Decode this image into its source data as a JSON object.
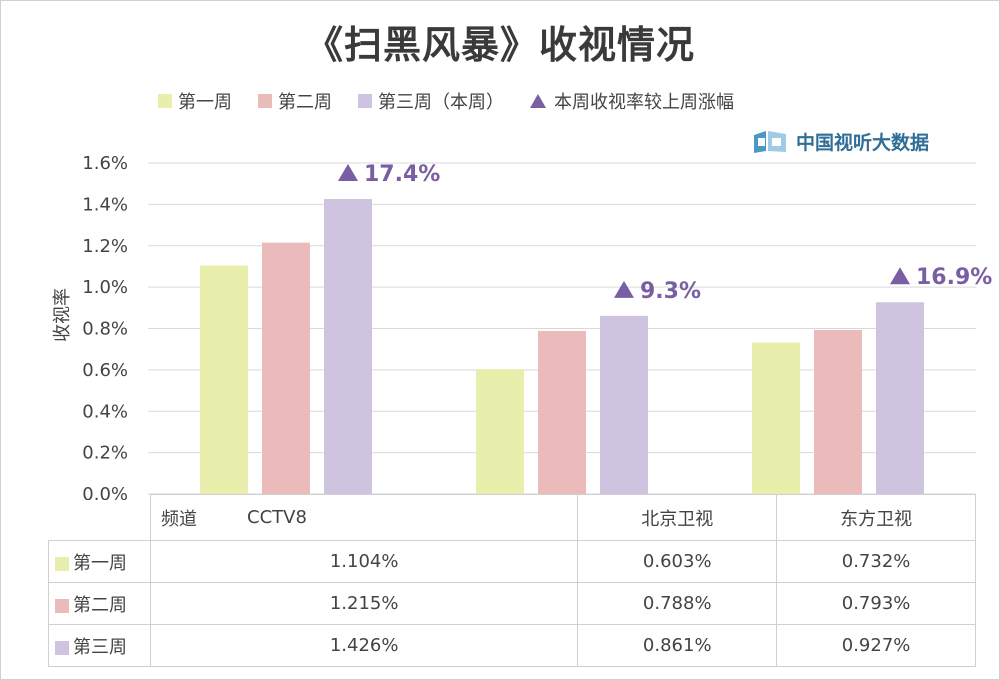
{
  "title": "《扫黑风暴》收视情况",
  "legend": {
    "w1": "第一周",
    "w2": "第二周",
    "w3": "第三周（本周）",
    "change": "本周收视率较上周涨幅"
  },
  "brand": "中国视听大数据",
  "table": {
    "corner": "频道",
    "channels": [
      "CCTV8",
      "北京卫视",
      "东方卫视"
    ],
    "rows": [
      {
        "label": "第一周",
        "values": [
          "1.104%",
          "0.603%",
          "0.732%"
        ]
      },
      {
        "label": "第二周",
        "values": [
          "1.215%",
          "0.788%",
          "0.793%"
        ]
      },
      {
        "label": "第三周",
        "values": [
          "1.426%",
          "0.861%",
          "0.927%"
        ]
      }
    ]
  },
  "chart_data": {
    "type": "bar",
    "title": "《扫黑风暴》收视情况",
    "ylabel": "收视率",
    "xlabel": "",
    "ylim": [
      0,
      1.6
    ],
    "yticks": [
      "0.0%",
      "0.2%",
      "0.4%",
      "0.6%",
      "0.8%",
      "1.0%",
      "1.2%",
      "1.4%",
      "1.6%"
    ],
    "grid": true,
    "legend_position": "top",
    "categories": [
      "CCTV8",
      "北京卫视",
      "东方卫视"
    ],
    "series": [
      {
        "name": "第一周",
        "values": [
          1.104,
          0.603,
          0.732
        ],
        "color": "#e8eeac"
      },
      {
        "name": "第二周",
        "values": [
          1.215,
          0.788,
          0.793
        ],
        "color": "#ebbbbb"
      },
      {
        "name": "第三周（本周）",
        "values": [
          1.426,
          0.861,
          0.927
        ],
        "color": "#cec4df"
      }
    ],
    "annotations": [
      "17.4%",
      "9.3%",
      "16.9%"
    ],
    "annotation_color": "#7a5ea4",
    "colors": {
      "w1": "#e8eeac",
      "w2": "#ebbbbb",
      "w3": "#cec4df",
      "accent": "#7a5ea4",
      "brand": "#2f6f97"
    }
  }
}
